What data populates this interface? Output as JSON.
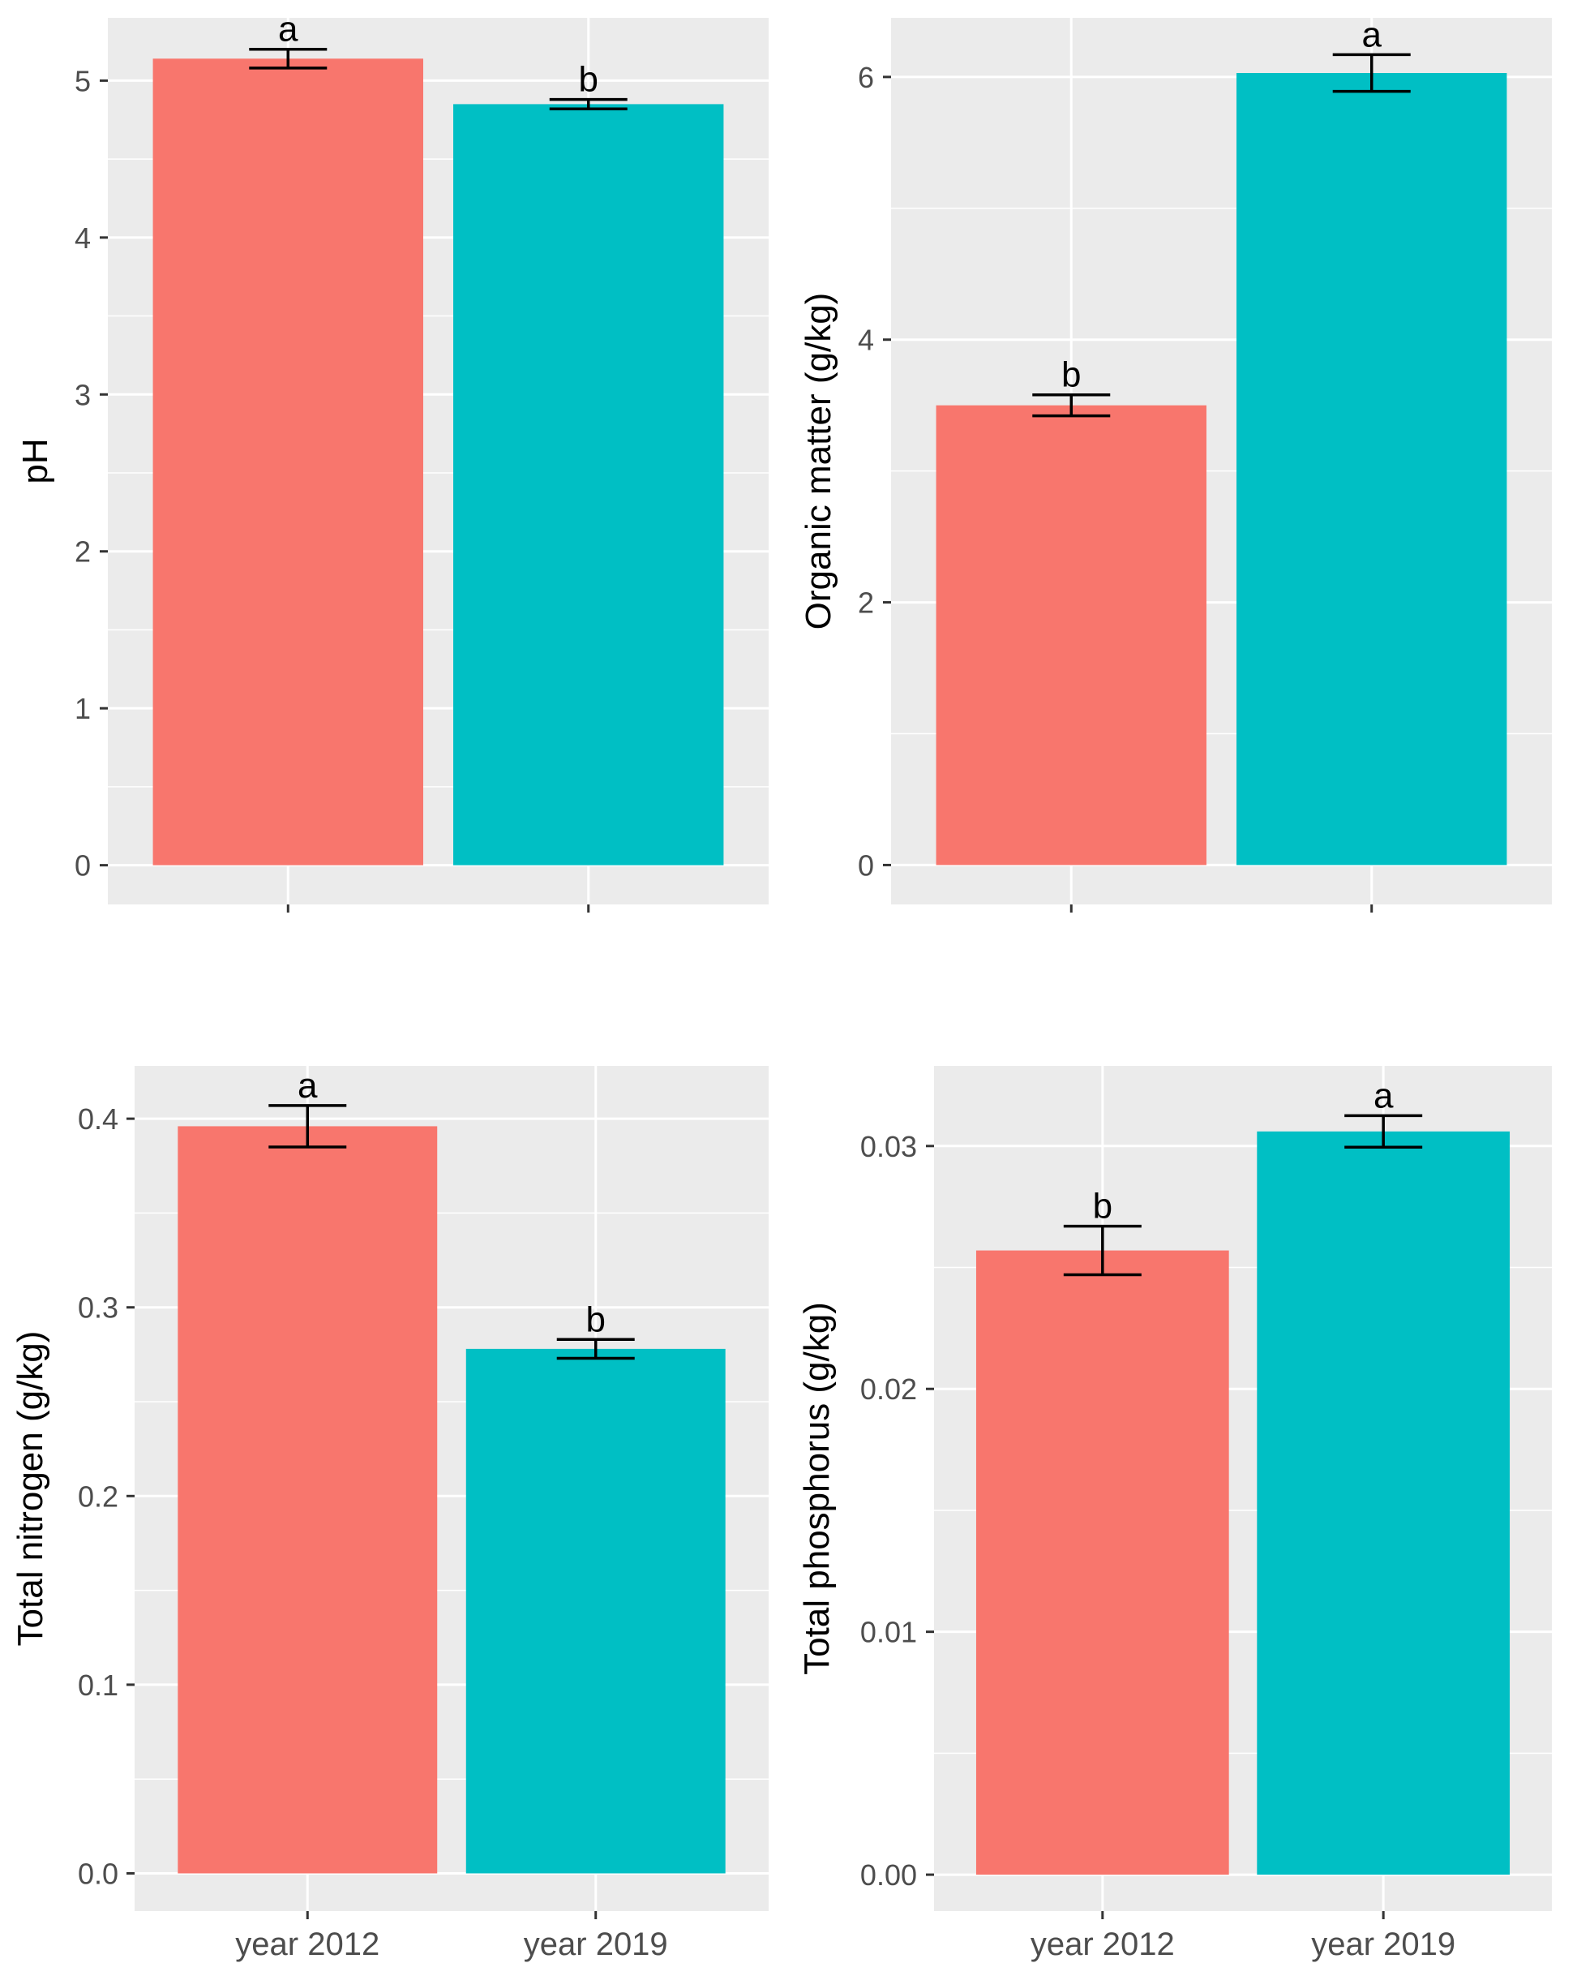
{
  "figure": {
    "background": "#ffffff",
    "panel_background": "#ebebeb",
    "grid_color": "#ffffff"
  },
  "colors": {
    "series_2012": "#f8766d",
    "series_2019": "#00bfc4",
    "error_bar": "#000000",
    "tick_label": "#4d4d4d",
    "axis_title": "#000000"
  },
  "chart_data": [
    {
      "id": "ph",
      "type": "bar",
      "categories": [
        "year 2012",
        "year 2019"
      ],
      "values": [
        5.14,
        4.85
      ],
      "errors": [
        0.06,
        0.03
      ],
      "letters": [
        "a",
        "b"
      ],
      "xlabel": "",
      "ylabel": "pH",
      "ylim": [
        -0.25,
        5.4
      ],
      "yticks": [
        0,
        1,
        2,
        3,
        4,
        5
      ],
      "ytick_labels": [
        "0",
        "1",
        "2",
        "3",
        "4",
        "5"
      ],
      "show_x_tick_labels": false
    },
    {
      "id": "organic-matter",
      "type": "bar",
      "categories": [
        "year 2012",
        "year 2019"
      ],
      "values": [
        3.5,
        6.03
      ],
      "errors": [
        0.08,
        0.14
      ],
      "letters": [
        "b",
        "a"
      ],
      "xlabel": "",
      "ylabel": "Organic matter (g/kg)",
      "ylim": [
        -0.3,
        6.45
      ],
      "yticks": [
        0,
        2,
        4,
        6
      ],
      "ytick_labels": [
        "0",
        "2",
        "4",
        "6"
      ],
      "show_x_tick_labels": false
    },
    {
      "id": "total-nitrogen",
      "type": "bar",
      "categories": [
        "year 2012",
        "year 2019"
      ],
      "values": [
        0.396,
        0.278
      ],
      "errors": [
        0.011,
        0.005
      ],
      "letters": [
        "a",
        "b"
      ],
      "xlabel": "",
      "ylabel": "Total nitrogen (g/kg)",
      "ylim": [
        -0.02,
        0.428
      ],
      "yticks": [
        0.0,
        0.1,
        0.2,
        0.3,
        0.4
      ],
      "ytick_labels": [
        "0.0",
        "0.1",
        "0.2",
        "0.3",
        "0.4"
      ],
      "show_x_tick_labels": true
    },
    {
      "id": "total-phosphorus",
      "type": "bar",
      "categories": [
        "year 2012",
        "year 2019"
      ],
      "values": [
        0.0257,
        0.0306
      ],
      "errors": [
        0.001,
        0.00065
      ],
      "letters": [
        "b",
        "a"
      ],
      "xlabel": "",
      "ylabel": "Total phosphorus (g/kg)",
      "ylim": [
        -0.0015,
        0.0333
      ],
      "yticks": [
        0.0,
        0.01,
        0.02,
        0.03
      ],
      "ytick_labels": [
        "0.00",
        "0.01",
        "0.02",
        "0.03"
      ],
      "show_x_tick_labels": true
    }
  ]
}
